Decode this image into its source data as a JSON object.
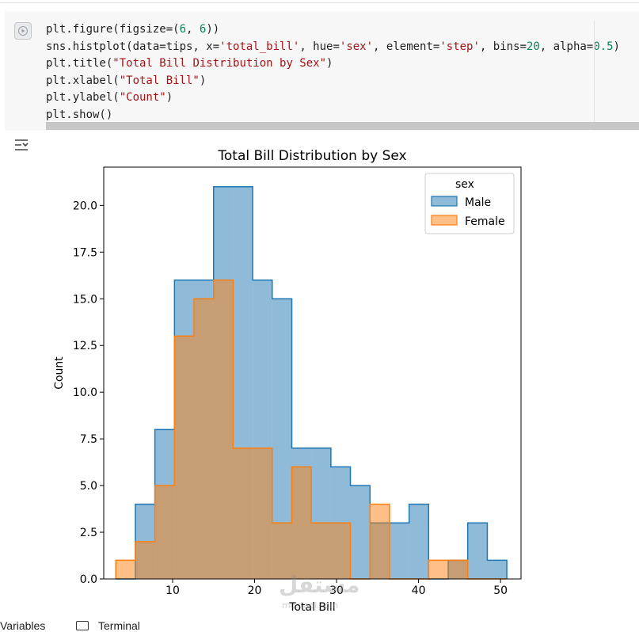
{
  "code_cell": {
    "lines": [
      [
        [
          "plt.figure(figsize=(",
          ""
        ],
        [
          "6",
          "num"
        ],
        [
          ", ",
          ""
        ],
        [
          "6",
          "num"
        ],
        [
          "))",
          ""
        ]
      ],
      [
        [
          "sns.histplot(data=tips, x=",
          ""
        ],
        [
          "'total_bill'",
          "str"
        ],
        [
          ", hue=",
          ""
        ],
        [
          "'sex'",
          "str"
        ],
        [
          ", element=",
          ""
        ],
        [
          "'step'",
          "str"
        ],
        [
          ", bins=",
          ""
        ],
        [
          "20",
          "num"
        ],
        [
          ", alpha=",
          ""
        ],
        [
          "0.5",
          "num"
        ],
        [
          ")",
          ""
        ]
      ],
      [
        [
          "plt.title(",
          ""
        ],
        [
          "\"Total Bill Distribution by Sex\"",
          "str"
        ],
        [
          ")",
          ""
        ]
      ],
      [
        [
          "plt.xlabel(",
          ""
        ],
        [
          "\"Total Bill\"",
          "str"
        ],
        [
          ")",
          ""
        ]
      ],
      [
        [
          "plt.ylabel(",
          ""
        ],
        [
          "\"Count\"",
          "str"
        ],
        [
          ")",
          ""
        ]
      ],
      [
        [
          "plt.show()",
          ""
        ]
      ]
    ]
  },
  "icons": {
    "run": "play-icon",
    "output_toggle": "output-collapse-icon",
    "terminal": "terminal-icon"
  },
  "bottom_bar": {
    "variables_label": "Variables",
    "terminal_label": "Terminal"
  },
  "watermark": {
    "text": "مستقل",
    "sub": "mostaql.com"
  },
  "colors": {
    "male": "#1f77b4",
    "female": "#ff7f0e"
  },
  "chart_data": {
    "type": "histogram",
    "element": "step",
    "title": "Total Bill Distribution by Sex",
    "xlabel": "Total Bill",
    "ylabel": "Count",
    "xlim": [
      1.6,
      52.5
    ],
    "ylim": [
      0,
      22.05
    ],
    "xticks": [
      10,
      20,
      30,
      40,
      50
    ],
    "yticks": [
      0,
      2.5,
      5,
      7.5,
      10,
      12.5,
      15,
      17.5,
      20
    ],
    "ytick_labels": [
      "0.0",
      "2.5",
      "5.0",
      "7.5",
      "10.0",
      "12.5",
      "15.0",
      "17.5",
      "20.0"
    ],
    "bin_edges": [
      3.07,
      5.46,
      7.84,
      10.23,
      12.61,
      15.0,
      17.38,
      19.77,
      22.15,
      24.54,
      26.92,
      29.31,
      31.69,
      34.08,
      36.46,
      38.85,
      41.23,
      43.62,
      46.0,
      48.39,
      50.77
    ],
    "legend": {
      "title": "sex",
      "position": "upper right"
    },
    "series": [
      {
        "name": "Male",
        "color": "#1f77b4",
        "counts": [
          0,
          4,
          8,
          16,
          16,
          21,
          21,
          16,
          15,
          7,
          7,
          6,
          5,
          3,
          3,
          4,
          0,
          1,
          3,
          1
        ]
      },
      {
        "name": "Female",
        "color": "#ff7f0e",
        "counts": [
          1,
          2,
          5,
          13,
          15,
          16,
          7,
          7,
          3,
          6,
          3,
          3,
          0,
          4,
          0,
          0,
          1,
          1,
          0,
          0
        ]
      }
    ]
  }
}
